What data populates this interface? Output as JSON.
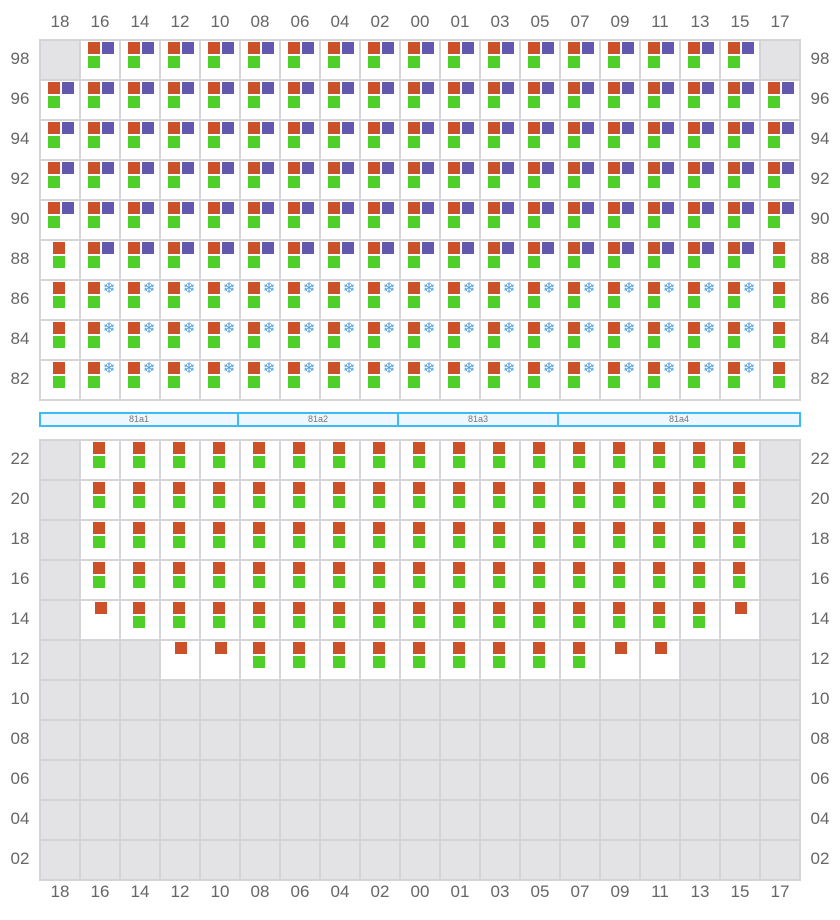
{
  "columns": [
    "18",
    "16",
    "14",
    "12",
    "10",
    "08",
    "06",
    "04",
    "02",
    "00",
    "01",
    "03",
    "05",
    "07",
    "09",
    "11",
    "13",
    "15",
    "17"
  ],
  "colors": {
    "red": "#cc5129",
    "purple": "#6259ae",
    "green": "#4fcf29",
    "snowflake": "#4a9ee0",
    "empty": "#e3e3e6",
    "segment_border": "#3cbcf0",
    "segment_fill": "#eef6fe"
  },
  "cell_types": {
    "rpg": [
      "red",
      "purple",
      "green"
    ],
    "rsg": [
      "red",
      "snowflake-icon",
      "green"
    ],
    "rg": [
      "red",
      "green"
    ],
    "r": [
      "red"
    ],
    "none": []
  },
  "top_section": {
    "rows": [
      {
        "label": "98",
        "cells": "none rpg rpg rpg rpg rpg rpg rpg rpg rpg rpg rpg rpg rpg rpg rpg rpg rpg none"
      },
      {
        "label": "96",
        "cells": "rpg rpg rpg rpg rpg rpg rpg rpg rpg rpg rpg rpg rpg rpg rpg rpg rpg rpg rpg"
      },
      {
        "label": "94",
        "cells": "rpg rpg rpg rpg rpg rpg rpg rpg rpg rpg rpg rpg rpg rpg rpg rpg rpg rpg rpg"
      },
      {
        "label": "92",
        "cells": "rpg rpg rpg rpg rpg rpg rpg rpg rpg rpg rpg rpg rpg rpg rpg rpg rpg rpg rpg"
      },
      {
        "label": "90",
        "cells": "rpg rpg rpg rpg rpg rpg rpg rpg rpg rpg rpg rpg rpg rpg rpg rpg rpg rpg rpg"
      },
      {
        "label": "88",
        "cells": "rg rpg rpg rpg rpg rpg rpg rpg rpg rpg rpg rpg rpg rpg rpg rpg rpg rpg rg"
      },
      {
        "label": "86",
        "cells": "rg rsg rsg rsg rsg rsg rsg rsg rsg rsg rsg rsg rsg rsg rsg rsg rsg rsg rg"
      },
      {
        "label": "84",
        "cells": "rg rsg rsg rsg rsg rsg rsg rsg rsg rsg rsg rsg rsg rsg rsg rsg rsg rsg rg"
      },
      {
        "label": "82",
        "cells": "rg rsg rsg rsg rsg rsg rsg rsg rsg rsg rsg rsg rsg rsg rsg rsg rsg rsg rg"
      }
    ]
  },
  "segments": [
    {
      "label": "81a1",
      "span": 5
    },
    {
      "label": "81a2",
      "span": 4
    },
    {
      "label": "81a3",
      "span": 4
    },
    {
      "label": "81a4",
      "span": 6
    }
  ],
  "bottom_section": {
    "rows": [
      {
        "label": "22",
        "cells": "none rg rg rg rg rg rg rg rg rg rg rg rg rg rg rg rg rg none"
      },
      {
        "label": "20",
        "cells": "none rg rg rg rg rg rg rg rg rg rg rg rg rg rg rg rg rg none"
      },
      {
        "label": "18",
        "cells": "none rg rg rg rg rg rg rg rg rg rg rg rg rg rg rg rg rg none"
      },
      {
        "label": "16",
        "cells": "none rg rg rg rg rg rg rg rg rg rg rg rg rg rg rg rg rg none"
      },
      {
        "label": "14",
        "cells": "none r rg rg rg rg rg rg rg rg rg rg rg rg rg rg rg r none"
      },
      {
        "label": "12",
        "cells": "none none none r r rg rg rg rg rg rg rg rg rg r r none none none"
      },
      {
        "label": "10",
        "cells": "none none none none none none none none none none none none none none none none none none none"
      },
      {
        "label": "08",
        "cells": "none none none none none none none none none none none none none none none none none none none"
      },
      {
        "label": "06",
        "cells": "none none none none none none none none none none none none none none none none none none none"
      },
      {
        "label": "04",
        "cells": "none none none none none none none none none none none none none none none none none none none"
      },
      {
        "label": "02",
        "cells": "none none none none none none none none none none none none none none none none none none none"
      }
    ]
  }
}
